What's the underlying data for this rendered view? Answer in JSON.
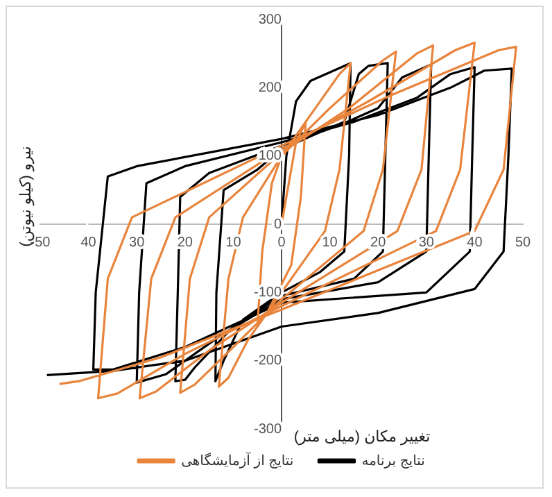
{
  "chart_data": {
    "type": "line",
    "xlabel": "تغییر مکان (میلی متر)",
    "ylabel": "نیرو (کیلو نیوتن)",
    "xlim": [
      -50,
      50
    ],
    "xticks": [
      -50,
      {
        "value": -40,
        "label": "40"
      },
      {
        "value": -30,
        "label": "30"
      },
      {
        "value": -20,
        "label": "20"
      },
      {
        "value": -10,
        "label": "10"
      },
      0,
      10,
      20,
      30,
      40,
      50
    ],
    "ylim": [
      -300,
      300
    ],
    "yticks": [
      -300,
      -200,
      -100,
      0,
      100,
      200,
      300
    ],
    "grid": false,
    "legend": "bottom",
    "marker": "none",
    "line_style": "solid",
    "series": [
      {
        "name": "نتایج از آزمایشگاهی",
        "color": "#e8843c",
        "x": [
          0,
          3,
          5,
          4,
          2,
          -3,
          -5,
          -4,
          -2,
          0,
          7,
          12,
          14.3,
          12,
          9,
          0,
          -7,
          -11,
          -13,
          -11,
          -8,
          0,
          10,
          21,
          23.7,
          21,
          17,
          0,
          -10,
          -18,
          -21,
          -19,
          -15,
          0,
          14,
          28,
          31.4,
          29,
          24,
          0,
          -15,
          -26,
          -29.4,
          -27,
          -22,
          0,
          18,
          36,
          40,
          37,
          32,
          0,
          -20,
          -34,
          -38,
          -36,
          -31,
          0,
          23,
          45,
          48.6,
          46,
          40,
          0,
          -25,
          -42,
          -46
        ],
        "values": [
          0,
          120,
          150,
          40,
          -60,
          -130,
          -150,
          -40,
          60,
          100,
          170,
          220,
          236,
          80,
          -10,
          -100,
          -170,
          -225,
          -238,
          -80,
          10,
          100,
          170,
          240,
          253,
          80,
          -10,
          -110,
          -180,
          -235,
          -247,
          -80,
          10,
          105,
          170,
          250,
          262,
          80,
          -10,
          -115,
          -185,
          -245,
          -255,
          -80,
          10,
          110,
          180,
          255,
          266,
          80,
          -10,
          -120,
          -190,
          -248,
          -255,
          -80,
          10,
          115,
          190,
          255,
          260,
          80,
          -10,
          -125,
          -195,
          -230,
          -234
        ]
      },
      {
        "name": "نتایج برنامه",
        "color": "#000000",
        "x": [
          0,
          1,
          3,
          6,
          14.3,
          14,
          13,
          8,
          0,
          -8,
          -12,
          -13.7,
          -13.5,
          -12,
          -5,
          0,
          8,
          13,
          16,
          18,
          22,
          21.5,
          21,
          15,
          0,
          -10,
          -18,
          -20,
          -22,
          -21.5,
          -21,
          -15,
          0,
          12,
          20,
          25,
          31,
          30.5,
          30,
          20,
          0,
          -12,
          -24,
          -30,
          -29.5,
          -28,
          -20,
          0,
          15,
          28,
          35,
          40,
          39.5,
          39,
          30,
          0,
          -20,
          -35,
          -39,
          -38.5,
          -36,
          -30,
          0,
          20,
          35,
          42,
          47.7,
          47,
          46,
          40,
          20,
          0,
          -20,
          -35,
          -48.6
        ],
        "values": [
          0,
          100,
          180,
          210,
          236,
          100,
          -40,
          -70,
          -100,
          -140,
          -200,
          -230,
          -100,
          50,
          80,
          110,
          135,
          150,
          220,
          232,
          236,
          100,
          -40,
          -80,
          -105,
          -150,
          -210,
          -228,
          -230,
          -100,
          40,
          75,
          115,
          145,
          170,
          215,
          234,
          100,
          -40,
          -85,
          -110,
          -160,
          -220,
          -232,
          -100,
          60,
          85,
          120,
          150,
          185,
          220,
          230,
          100,
          -40,
          -100,
          -115,
          -180,
          -213,
          -213,
          -100,
          70,
          85,
          125,
          160,
          200,
          225,
          228,
          100,
          -40,
          -95,
          -130,
          -150,
          -200,
          -215,
          -221
        ]
      }
    ]
  }
}
